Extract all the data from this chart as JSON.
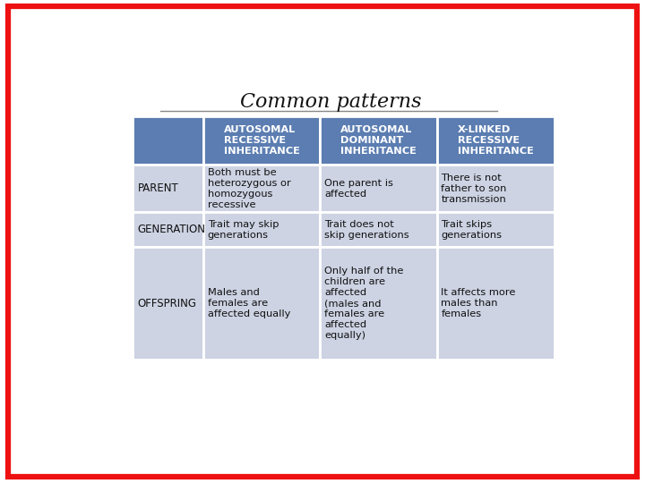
{
  "title": "Common patterns",
  "border_color": "#ee1111",
  "header_bg": "#5b7db1",
  "header_text_color": "#ffffff",
  "cell_bg": "#cdd3e3",
  "col_headers": [
    "AUTOSOMAL\nRECESSIVE\nINHERITANCE",
    "AUTOSOMAL\nDOMINANT\nINHERITANCE",
    "X-LINKED\nRECESSIVE\nINHERITANCE"
  ],
  "row_labels": [
    "PARENT",
    "GENERATION",
    "OFFSPRING"
  ],
  "cells": [
    [
      "Both must be\nheterozygous or\nhomozygous\nrecessive",
      "One parent is\naffected",
      "There is not\nfather to son\ntransmission"
    ],
    [
      "Trait may skip\ngenerations",
      "Trait does not\nskip generations",
      "Trait skips\ngenerations"
    ],
    [
      "Males and\nfemales are\naffected equally",
      "Only half of the\nchildren are\naffected\n(males and\nfemales are\naffected\nequally)",
      "It affects more\nmales than\nfemales"
    ]
  ],
  "title_fontsize": 16,
  "header_fontsize": 8.2,
  "cell_fontsize": 8.2,
  "label_fontsize": 8.5
}
